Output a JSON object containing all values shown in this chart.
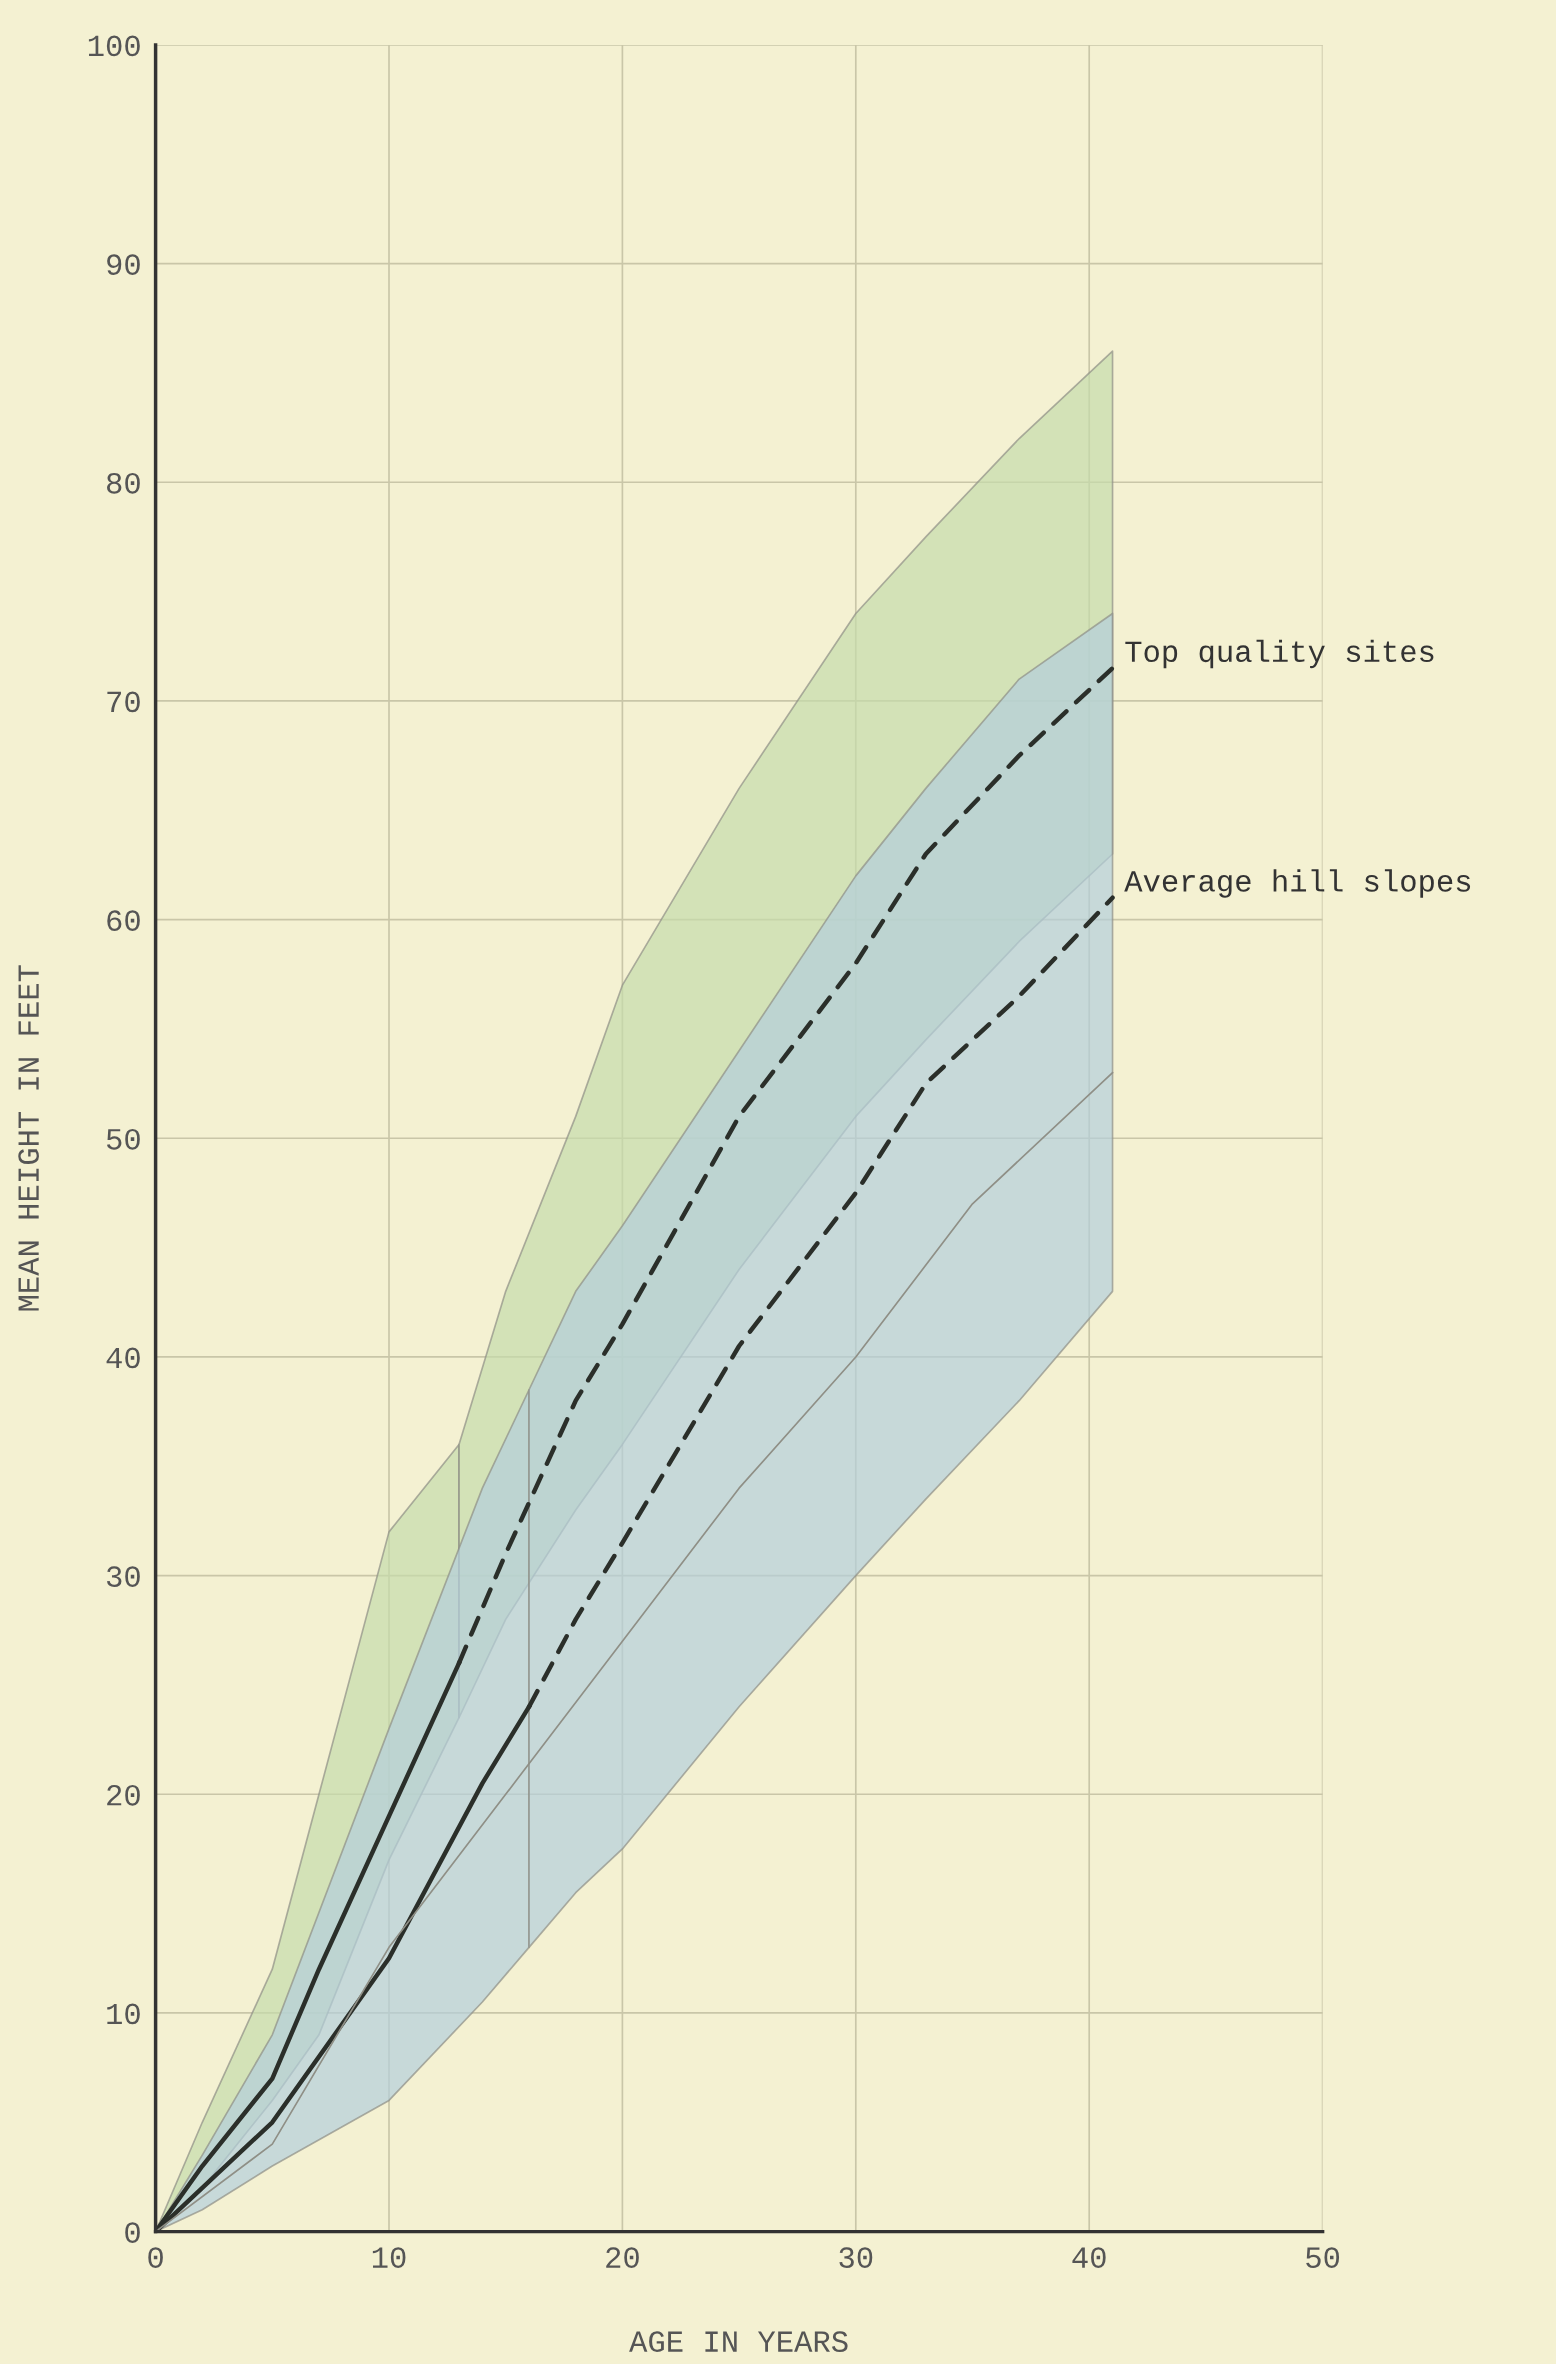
{
  "chart_data": {
    "type": "line",
    "xlabel": "AGE IN YEARS",
    "ylabel": "MEAN HEIGHT IN FEET",
    "xlim": [
      0,
      50
    ],
    "ylim": [
      0,
      100
    ],
    "xticks": [
      0,
      10,
      20,
      30,
      40,
      50
    ],
    "yticks": [
      0,
      10,
      20,
      30,
      40,
      50,
      60,
      70,
      80,
      90,
      100
    ],
    "grid": true,
    "series": [
      {
        "color": "#2b2f2a",
        "line_style": "solid",
        "x": [
          0,
          2,
          5,
          7,
          10,
          13
        ],
        "values": [
          0,
          3,
          7,
          12,
          19,
          26
        ],
        "upper": [
          0,
          5,
          12,
          20,
          32,
          36
        ],
        "lower": [
          0,
          2,
          6,
          9,
          17,
          23.5
        ]
      },
      {
        "color": "#2b2f2a",
        "line_style": "dashed",
        "name": "Top quality sites",
        "x": [
          13,
          15,
          18,
          20,
          25,
          30,
          33,
          37,
          41
        ],
        "values": [
          26,
          31,
          38,
          41.5,
          51,
          58,
          63,
          67.5,
          71.5
        ],
        "upper": [
          36,
          43,
          51,
          57,
          66,
          74,
          77.5,
          82,
          86
        ],
        "lower": [
          23.5,
          28,
          33,
          36,
          44,
          51,
          54.5,
          59,
          63
        ]
      },
      {
        "color": "#2b2f2a",
        "line_style": "solid",
        "x": [
          0,
          2,
          5,
          10,
          14,
          16
        ],
        "values": [
          0,
          2,
          5,
          12.5,
          20.5,
          24
        ],
        "upper": [
          0,
          3.5,
          9,
          23,
          34,
          38.5
        ],
        "lower": [
          0,
          1,
          3,
          6,
          10.5,
          13
        ]
      },
      {
        "color": "#2b2f2a",
        "line_style": "dashed",
        "name": "Average hill slopes",
        "x": [
          16,
          18,
          20,
          25,
          30,
          33,
          37,
          41
        ],
        "values": [
          24,
          28,
          31.5,
          40.5,
          47.5,
          52.5,
          56.5,
          61
        ],
        "upper": [
          38.5,
          43,
          46,
          54,
          62,
          66,
          71,
          74
        ],
        "lower": [
          13,
          15.5,
          17.5,
          24,
          30,
          33.5,
          38,
          43
        ]
      },
      {
        "color": "#8f8f86",
        "line_style": "solid",
        "x": [
          0,
          5,
          10,
          15,
          20,
          25,
          30,
          35,
          41
        ],
        "values": [
          0,
          4,
          13,
          20,
          27,
          34,
          40,
          47,
          53
        ]
      }
    ]
  }
}
